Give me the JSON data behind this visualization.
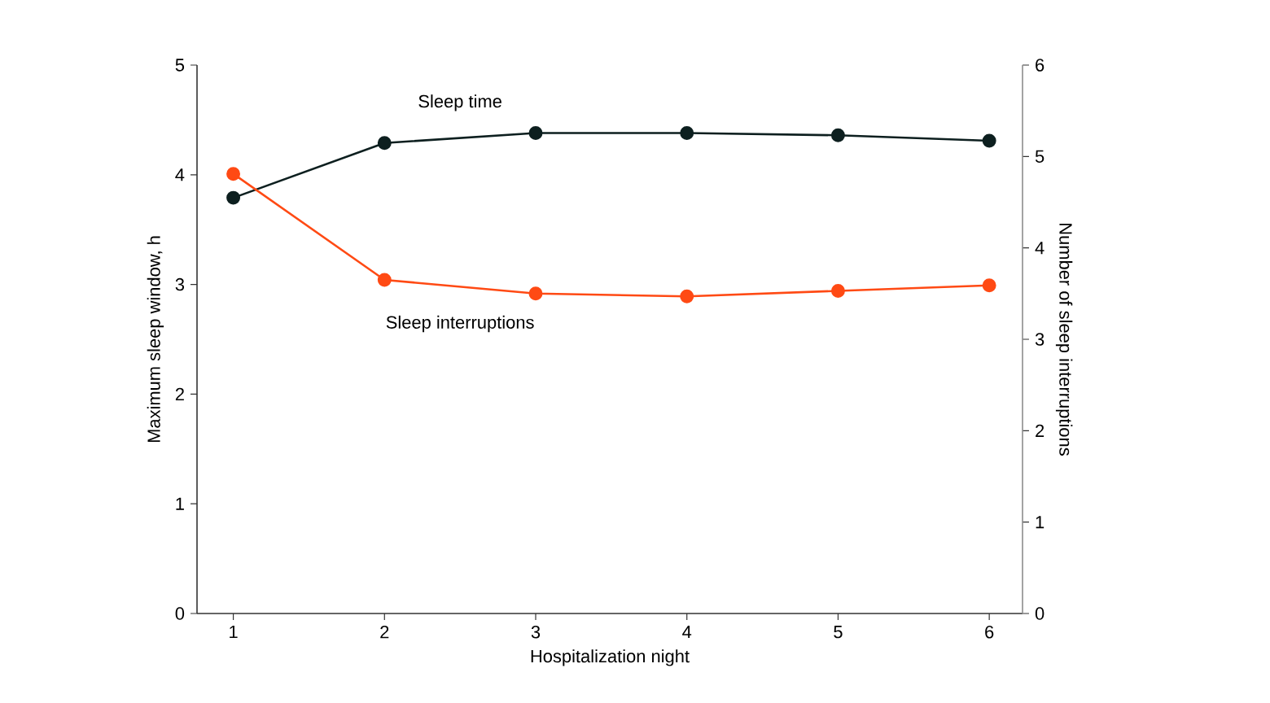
{
  "chart_data": {
    "type": "line",
    "xlabel": "Hospitalization night",
    "ylabel": "Maximum sleep window, h",
    "y2label": "Number of sleep interruptions",
    "x": [
      1,
      2,
      3,
      4,
      5,
      6
    ],
    "xlim": [
      0.76,
      6.22
    ],
    "xticks": [
      1,
      2,
      3,
      4,
      5,
      6
    ],
    "ylim": [
      0,
      5
    ],
    "yticks": [
      0,
      1,
      2,
      3,
      4,
      5
    ],
    "y2lim": [
      0,
      6
    ],
    "y2ticks": [
      0,
      1,
      2,
      3,
      4,
      5,
      6
    ],
    "marker": "circle",
    "line_style": "solid",
    "series": [
      {
        "name": "Sleep time",
        "color": "#0d1f1f",
        "values": [
          3.79,
          4.29,
          4.38,
          4.38,
          4.36,
          4.31
        ]
      },
      {
        "name": "Sleep interruptions",
        "color": "#ff4a14",
        "axis": "y2",
        "values": [
          4.81,
          3.65,
          3.5,
          3.47,
          3.53,
          3.59
        ]
      }
    ]
  }
}
